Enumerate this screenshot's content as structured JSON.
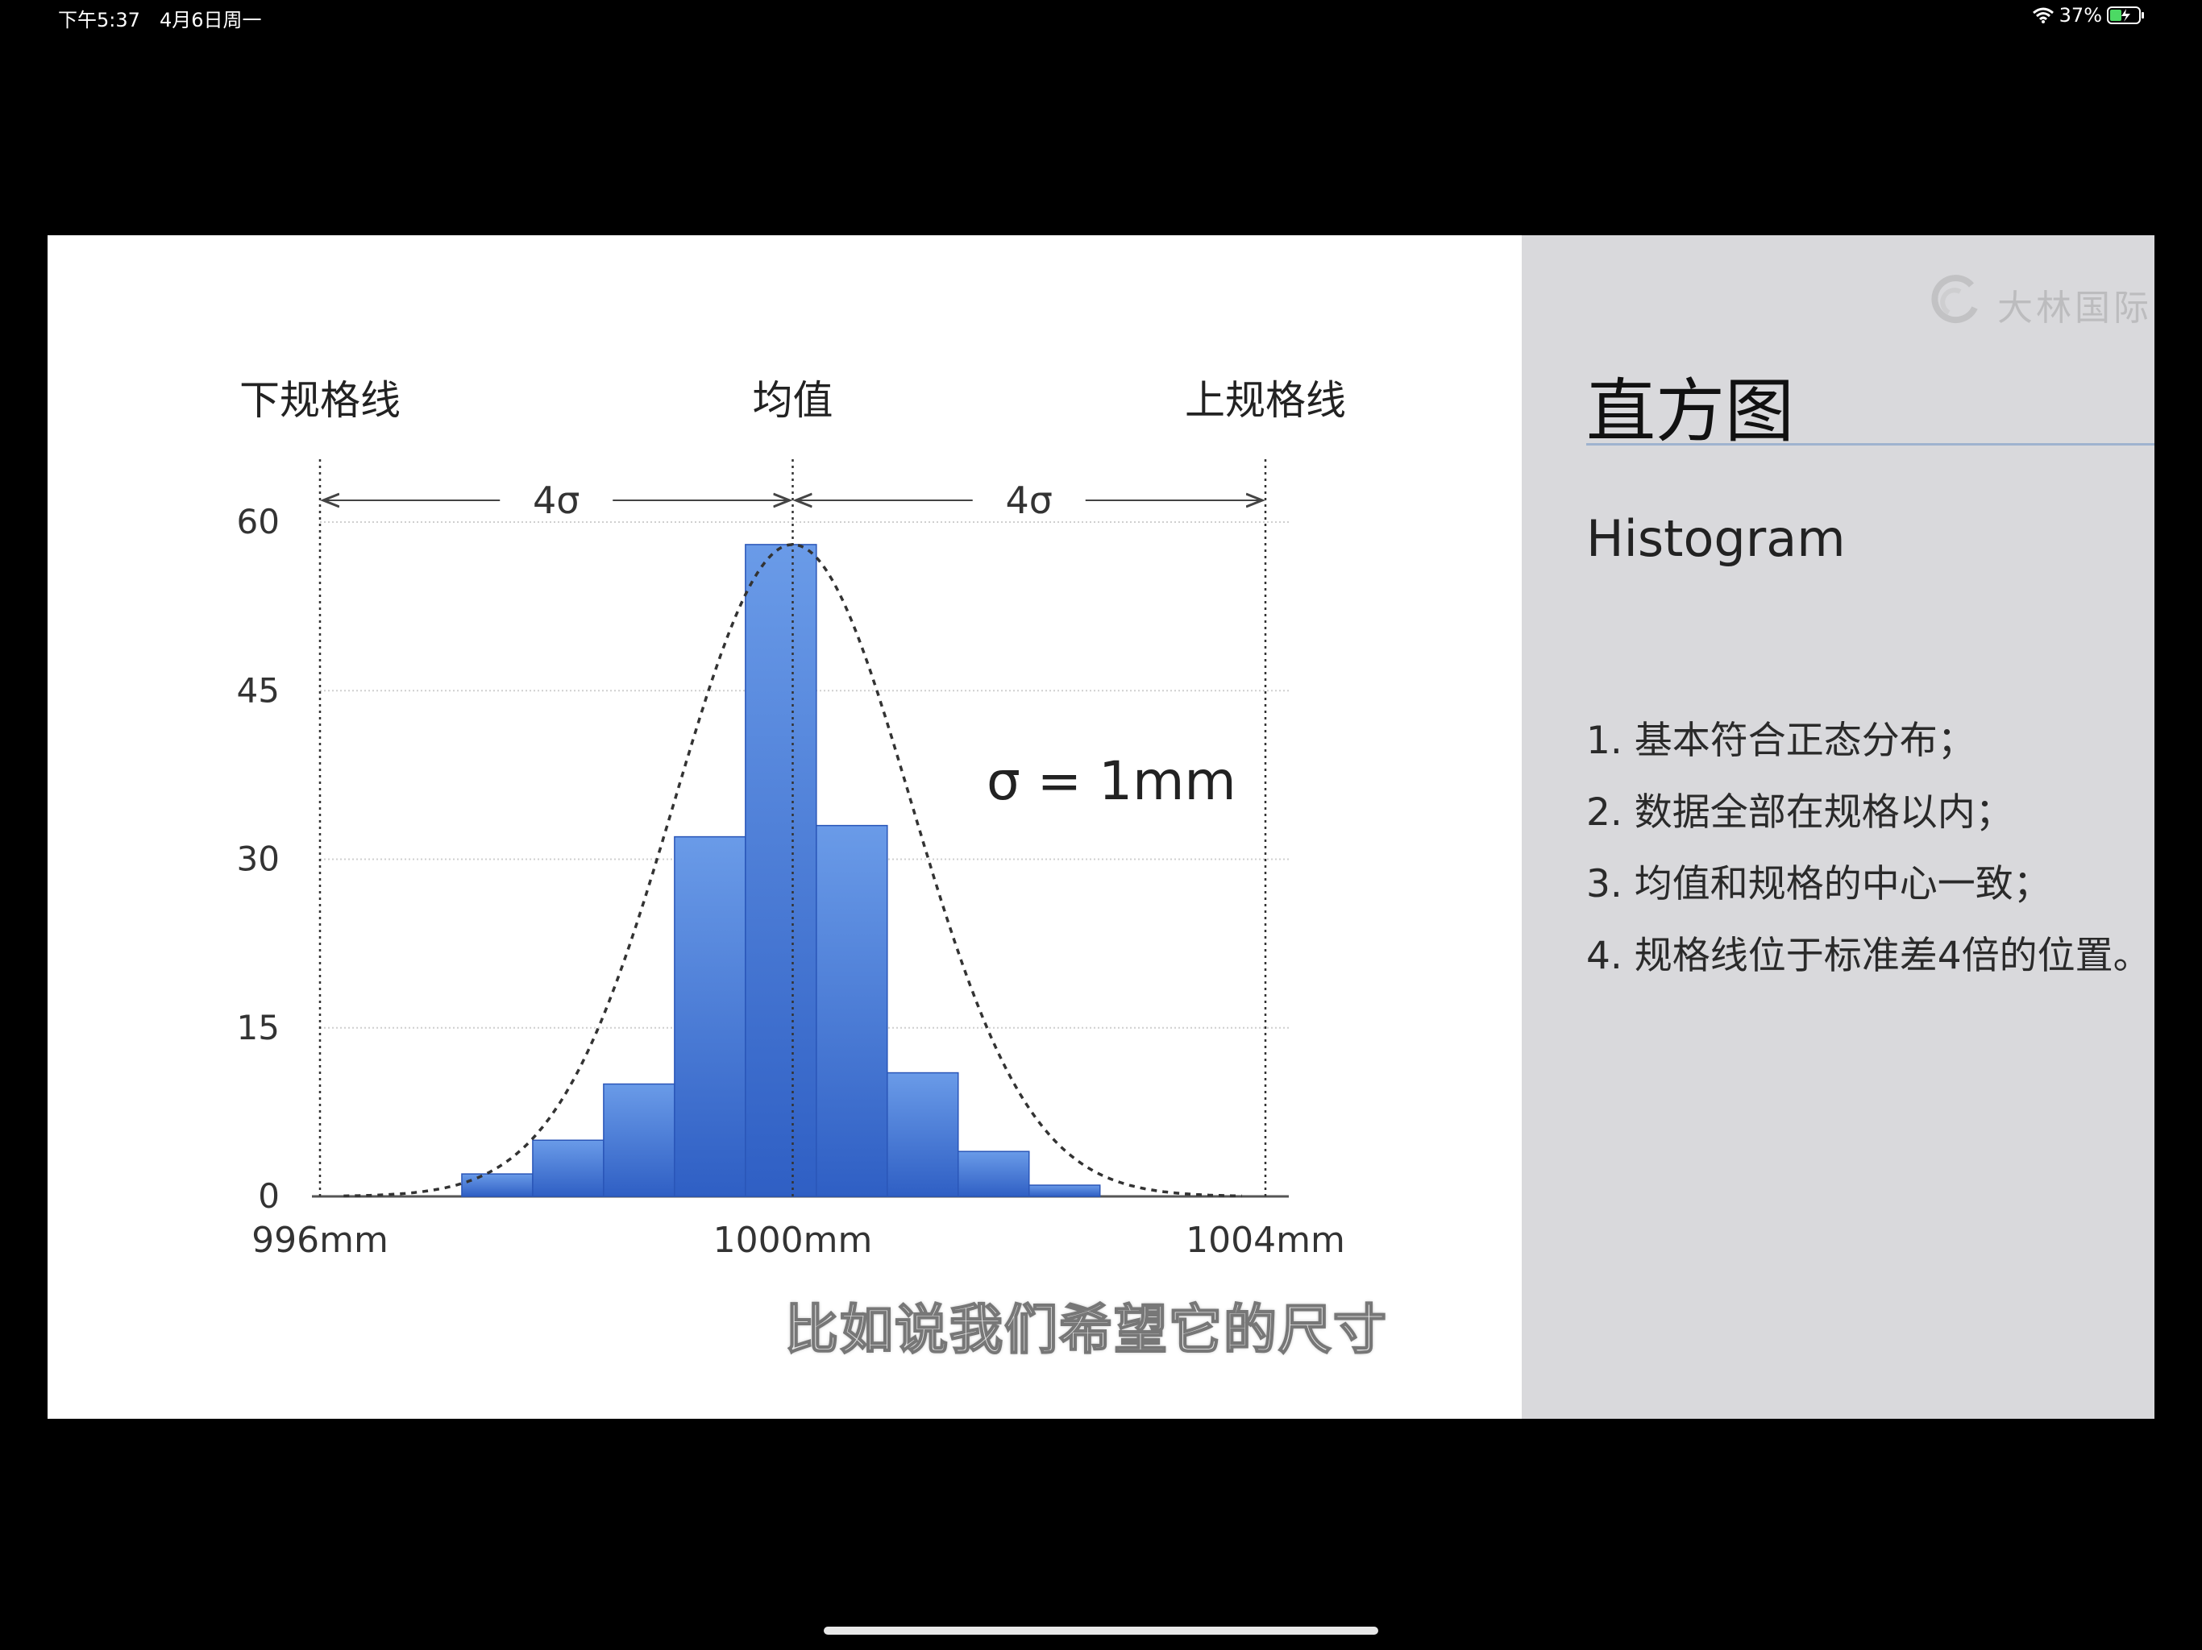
{
  "status_bar": {
    "time": "下午5:37",
    "date": "4月6日周一",
    "battery": "37%"
  },
  "slide": {
    "title": "直方图",
    "subtitle": "Histogram",
    "points": [
      "1. 基本符合正态分布；",
      "2. 数据全部在规格以内；",
      "3. 均值和规格的中心一致；",
      "4. 规格线位于标准差4倍的位置。"
    ],
    "caption": "比如说我们希望它的尺寸"
  },
  "chart_data": {
    "type": "bar",
    "labels_top": {
      "lsl": "下规格线",
      "mean": "均值",
      "usl": "上规格线"
    },
    "spans": [
      "4σ",
      "4σ"
    ],
    "annotation": "σ = 1mm",
    "x_ticks": [
      "996mm",
      "1000mm",
      "1004mm"
    ],
    "x_tick_values": [
      996,
      1000,
      1004
    ],
    "y_ticks": [
      0,
      15,
      30,
      45,
      60
    ],
    "ylim": [
      0,
      60
    ],
    "xlim": [
      996,
      1004
    ],
    "bins": [
      {
        "start": 997.2,
        "end": 997.8,
        "value": 2
      },
      {
        "start": 997.8,
        "end": 998.4,
        "value": 5
      },
      {
        "start": 998.4,
        "end": 999.0,
        "value": 10
      },
      {
        "start": 999.0,
        "end": 999.6,
        "value": 32
      },
      {
        "start": 999.6,
        "end": 1000.2,
        "value": 58
      },
      {
        "start": 1000.2,
        "end": 1000.8,
        "value": 33
      },
      {
        "start": 1000.8,
        "end": 1001.4,
        "value": 11
      },
      {
        "start": 1001.4,
        "end": 1002.0,
        "value": 4
      },
      {
        "start": 1002.0,
        "end": 1002.6,
        "value": 1
      }
    ],
    "normal_curve": {
      "mean": 1000,
      "sigma": 1,
      "peak": 58
    },
    "grid": true,
    "colors": {
      "bar_top": "#6a9be8",
      "bar_bottom": "#2f5fc4",
      "grid": "#cfcfcf"
    }
  }
}
